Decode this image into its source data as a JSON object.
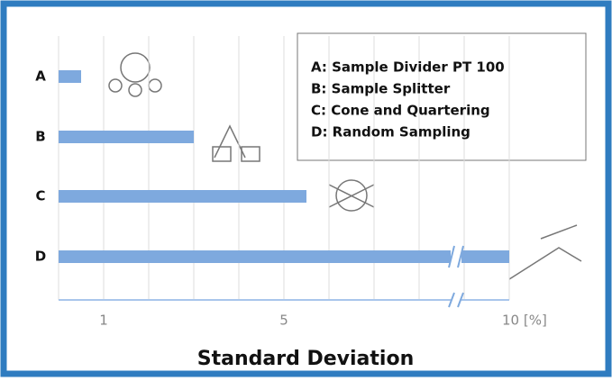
{
  "chart_data": {
    "type": "bar",
    "orientation": "horizontal",
    "categories": [
      "A",
      "B",
      "C",
      "D"
    ],
    "values": [
      0.5,
      3,
      5.5,
      10
    ],
    "color": "#7ea9de",
    "xlim": [
      0,
      10
    ],
    "xticks": [
      {
        "value": 0,
        "label": null
      },
      1,
      {
        "value": 2,
        "label": null
      },
      {
        "value": 3,
        "label": null
      },
      {
        "value": 4,
        "label": null
      },
      5,
      {
        "value": 6,
        "label": null
      },
      {
        "value": 7,
        "label": null
      },
      {
        "value": 8,
        "label": null
      },
      {
        "value": 9,
        "label": null
      },
      {
        "value": 10,
        "label": "10 [%]"
      }
    ],
    "grid": true,
    "x_label": "Standard Deviation",
    "legend": [
      "A: Sample Divider PT 100",
      "B: Sample Splitter",
      "C: Cone and Quartering",
      "D: Random Sampling"
    ]
  }
}
